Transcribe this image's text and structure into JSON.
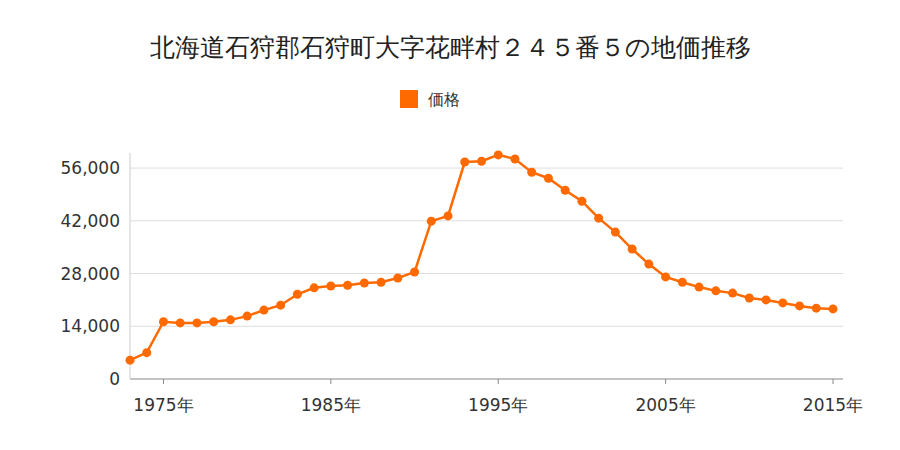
{
  "chart_data": {
    "type": "line",
    "title": "北海道石狩郡石狩町大字花畔村２４５番５の地価推移",
    "x": [
      1973,
      1974,
      1975,
      1976,
      1977,
      1978,
      1979,
      1980,
      1981,
      1982,
      1983,
      1984,
      1985,
      1986,
      1987,
      1988,
      1989,
      1990,
      1991,
      1992,
      1993,
      1994,
      1995,
      1996,
      1997,
      1998,
      1999,
      2000,
      2001,
      2002,
      2003,
      2004,
      2005,
      2006,
      2007,
      2008,
      2009,
      2010,
      2011,
      2012,
      2013,
      2014,
      2015
    ],
    "series": [
      {
        "name": "価格",
        "color": "#ff6a00",
        "marker": "circle",
        "values": [
          5000,
          7000,
          15200,
          14900,
          14900,
          15200,
          15700,
          16700,
          18300,
          19600,
          22500,
          24200,
          24700,
          24900,
          25500,
          25700,
          26800,
          28400,
          41900,
          43300,
          57600,
          57800,
          59500,
          58400,
          54900,
          53300,
          50100,
          47200,
          42700,
          39000,
          34500,
          30500,
          27100,
          25700,
          24400,
          23400,
          22800,
          21500,
          21000,
          20200,
          19400,
          18800,
          18600
        ]
      }
    ],
    "xlim": [
      1973,
      2015
    ],
    "xticks": [
      {
        "value": 1975,
        "label": "1975年"
      },
      {
        "value": 1985,
        "label": "1985年"
      },
      {
        "value": 1995,
        "label": "1995年"
      },
      {
        "value": 2005,
        "label": "2005年"
      },
      {
        "value": 2015,
        "label": "2015年"
      }
    ],
    "ylim": [
      0,
      60000
    ],
    "yticks": [
      0,
      {
        "value": 14000,
        "label": "14,000"
      },
      {
        "value": 28000,
        "label": "28,000"
      },
      {
        "value": 42000,
        "label": "42,000"
      },
      {
        "value": 56000,
        "label": "56,000"
      }
    ],
    "grid": true,
    "legend": "top"
  }
}
